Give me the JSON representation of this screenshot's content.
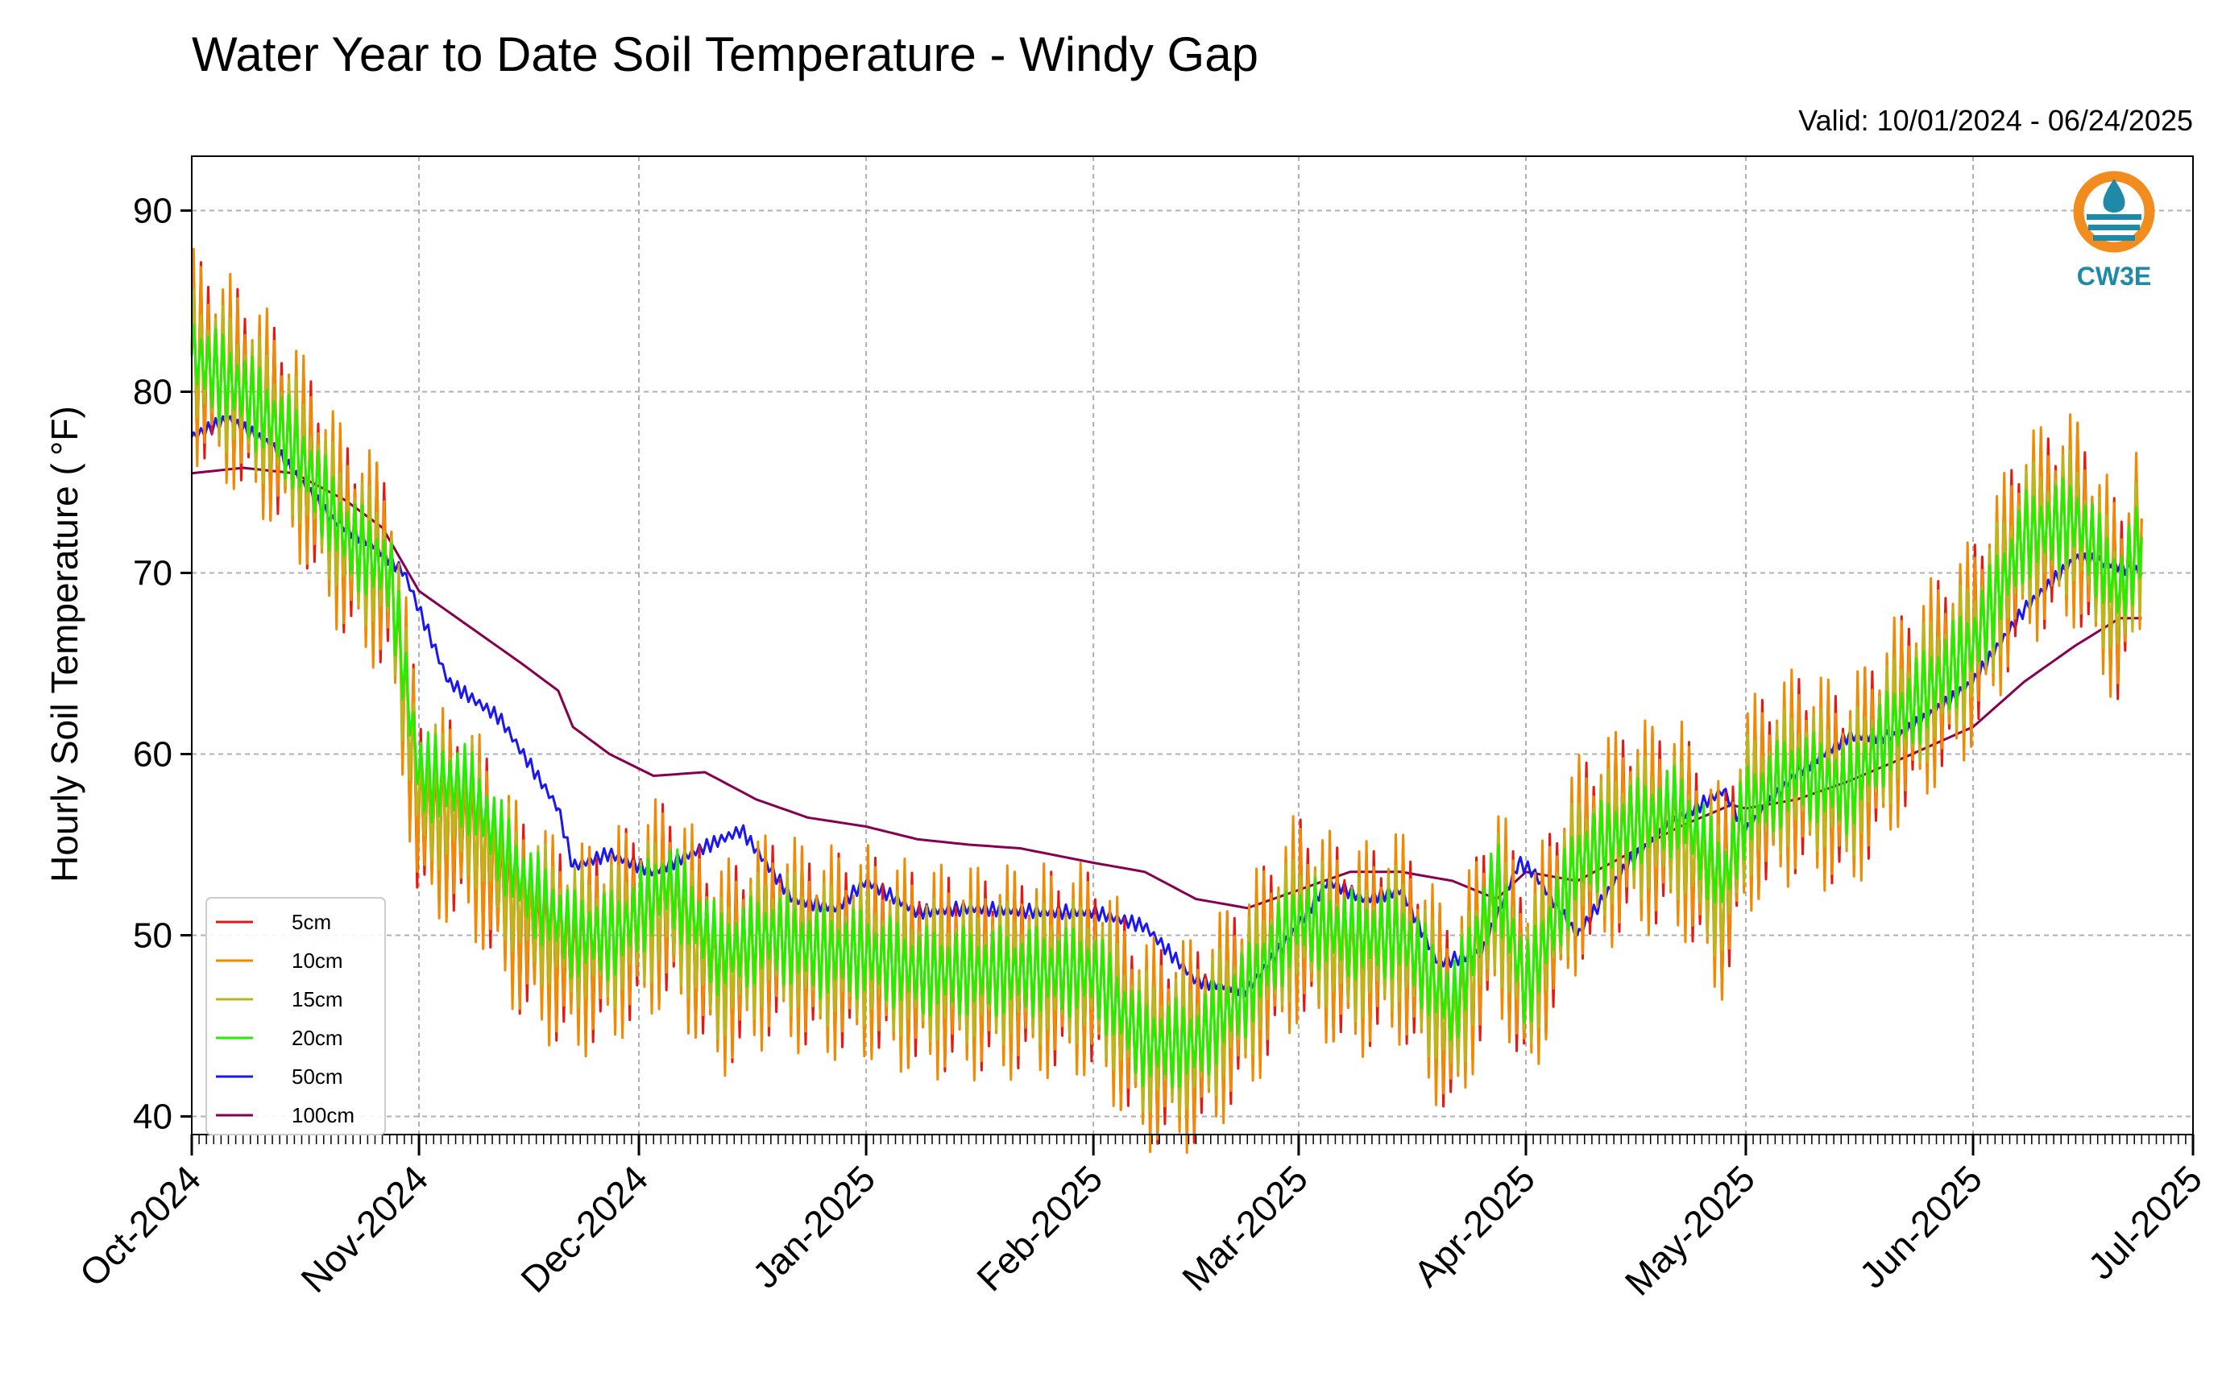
{
  "chart_data": {
    "type": "line",
    "title": "Water Year to Date Soil Temperature - Windy Gap",
    "valid_text": "Valid: 10/01/2024 - 06/24/2025",
    "ylabel": "Hourly Soil Temperature ( °F)",
    "xlabel": "",
    "ylim": [
      39,
      93
    ],
    "yticks": [
      40,
      50,
      60,
      70,
      80,
      90
    ],
    "xlim": [
      "2024-10-01",
      "2025-07-01"
    ],
    "xticks": [
      "Oct-2024",
      "Nov-2024",
      "Dec-2024",
      "Jan-2025",
      "Feb-2025",
      "Mar-2025",
      "Apr-2025",
      "May-2025",
      "Jun-2025",
      "Jul-2025"
    ],
    "grid": true,
    "legend_position": "lower-left",
    "series": [
      {
        "name": "5cm",
        "color": "#e8170f",
        "amplitude": 5.5,
        "x": [
          "2024-10-01",
          "2024-10-08",
          "2024-10-15",
          "2024-10-22",
          "2024-10-28",
          "2024-11-01",
          "2024-11-08",
          "2024-11-15",
          "2024-11-22",
          "2024-11-28",
          "2024-12-05",
          "2024-12-12",
          "2024-12-19",
          "2024-12-26",
          "2025-01-01",
          "2025-01-08",
          "2025-01-15",
          "2025-01-22",
          "2025-02-01",
          "2025-02-08",
          "2025-02-15",
          "2025-02-22",
          "2025-03-01",
          "2025-03-08",
          "2025-03-15",
          "2025-03-22",
          "2025-03-28",
          "2025-04-01",
          "2025-04-08",
          "2025-04-15",
          "2025-04-22",
          "2025-04-28",
          "2025-05-01",
          "2025-05-08",
          "2025-05-15",
          "2025-05-22",
          "2025-06-01",
          "2025-06-08",
          "2025-06-15",
          "2025-06-21",
          "2025-06-24"
        ],
        "values": [
          82,
          80,
          77,
          72,
          70,
          57,
          56,
          51,
          49,
          50,
          52,
          48,
          50,
          49,
          49,
          48,
          48,
          48,
          48,
          44,
          44,
          47,
          51,
          49,
          50,
          45,
          52,
          47,
          54,
          56,
          56,
          52,
          57,
          59,
          58,
          62,
          66,
          72,
          73,
          68,
          73
        ]
      },
      {
        "name": "10cm",
        "color": "#f08a00",
        "amplitude": 6.0,
        "x": [
          "2024-10-01",
          "2024-10-08",
          "2024-10-15",
          "2024-10-22",
          "2024-10-28",
          "2024-11-01",
          "2024-11-08",
          "2024-11-15",
          "2024-11-22",
          "2024-11-28",
          "2024-12-05",
          "2024-12-12",
          "2024-12-19",
          "2024-12-26",
          "2025-01-01",
          "2025-01-08",
          "2025-01-15",
          "2025-01-22",
          "2025-02-01",
          "2025-02-08",
          "2025-02-15",
          "2025-02-22",
          "2025-03-01",
          "2025-03-08",
          "2025-03-15",
          "2025-03-22",
          "2025-03-28",
          "2025-04-01",
          "2025-04-08",
          "2025-04-15",
          "2025-04-22",
          "2025-04-28",
          "2025-05-01",
          "2025-05-08",
          "2025-05-15",
          "2025-05-22",
          "2025-06-01",
          "2025-06-08",
          "2025-06-15",
          "2025-06-21",
          "2025-06-24"
        ],
        "values": [
          82,
          80,
          77,
          72,
          70,
          57,
          56,
          51,
          49,
          50,
          52,
          48,
          50,
          49,
          49,
          48,
          48,
          48,
          48,
          44,
          44,
          47,
          51,
          49,
          50,
          45,
          52,
          47,
          54,
          56,
          56,
          52,
          57,
          59,
          58,
          62,
          66,
          72,
          73,
          68,
          73
        ]
      },
      {
        "name": "15cm",
        "color": "#b8b81c",
        "amplitude": 4.0,
        "x": [
          "2024-10-01",
          "2024-10-08",
          "2024-10-15",
          "2024-10-22",
          "2024-10-28",
          "2024-11-01",
          "2024-11-08",
          "2024-11-15",
          "2024-11-22",
          "2024-11-28",
          "2024-12-05",
          "2024-12-12",
          "2024-12-19",
          "2024-12-26",
          "2025-01-01",
          "2025-01-08",
          "2025-01-15",
          "2025-01-22",
          "2025-02-01",
          "2025-02-08",
          "2025-02-15",
          "2025-02-22",
          "2025-03-01",
          "2025-03-08",
          "2025-03-15",
          "2025-03-22",
          "2025-03-28",
          "2025-04-01",
          "2025-04-08",
          "2025-04-15",
          "2025-04-22",
          "2025-04-28",
          "2025-05-01",
          "2025-05-08",
          "2025-05-15",
          "2025-05-22",
          "2025-06-01",
          "2025-06-08",
          "2025-06-15",
          "2025-06-21",
          "2025-06-24"
        ],
        "values": [
          82,
          80,
          77,
          72,
          70,
          58,
          57,
          52,
          50,
          50,
          52,
          48,
          50,
          49,
          49,
          48,
          48,
          48,
          48,
          44,
          44,
          47,
          51,
          49,
          50,
          45,
          52,
          47,
          54,
          56,
          56,
          52,
          57,
          59,
          58,
          62,
          66,
          72,
          73,
          68,
          72
        ]
      },
      {
        "name": "20cm",
        "color": "#22ee00",
        "amplitude": 2.5,
        "x": [
          "2024-10-01",
          "2024-10-08",
          "2024-10-15",
          "2024-10-22",
          "2024-10-28",
          "2024-11-01",
          "2024-11-08",
          "2024-11-15",
          "2024-11-22",
          "2024-11-28",
          "2024-12-05",
          "2024-12-12",
          "2024-12-19",
          "2024-12-26",
          "2025-01-01",
          "2025-01-08",
          "2025-01-15",
          "2025-01-22",
          "2025-02-01",
          "2025-02-08",
          "2025-02-15",
          "2025-02-22",
          "2025-03-01",
          "2025-03-08",
          "2025-03-15",
          "2025-03-22",
          "2025-03-28",
          "2025-04-01",
          "2025-04-08",
          "2025-04-15",
          "2025-04-22",
          "2025-04-28",
          "2025-05-01",
          "2025-05-08",
          "2025-05-15",
          "2025-05-22",
          "2025-06-01",
          "2025-06-08",
          "2025-06-15",
          "2025-06-21",
          "2025-06-24"
        ],
        "values": [
          82,
          80,
          77,
          72,
          70,
          59,
          58,
          53,
          50,
          50,
          53,
          49,
          50,
          49,
          49,
          48,
          48,
          48,
          48,
          44,
          44,
          47,
          51,
          50,
          50,
          46,
          53,
          47,
          54,
          56,
          57,
          53,
          57,
          59,
          58,
          62,
          66,
          72,
          73,
          69,
          72
        ]
      },
      {
        "name": "50cm",
        "color": "#1a17f0",
        "amplitude": 0.4,
        "x": [
          "2024-10-01",
          "2024-10-06",
          "2024-10-12",
          "2024-10-20",
          "2024-10-26",
          "2024-10-30",
          "2024-11-05",
          "2024-11-12",
          "2024-11-20",
          "2024-11-22",
          "2024-11-27",
          "2024-12-03",
          "2024-12-08",
          "2024-12-15",
          "2024-12-22",
          "2024-12-28",
          "2025-01-01",
          "2025-01-08",
          "2025-01-15",
          "2025-01-25",
          "2025-02-01",
          "2025-02-08",
          "2025-02-15",
          "2025-02-22",
          "2025-02-28",
          "2025-03-05",
          "2025-03-10",
          "2025-03-15",
          "2025-03-20",
          "2025-03-26",
          "2025-03-31",
          "2025-04-02",
          "2025-04-08",
          "2025-04-15",
          "2025-04-22",
          "2025-04-28",
          "2025-05-01",
          "2025-05-08",
          "2025-05-15",
          "2025-05-22",
          "2025-05-29",
          "2025-06-01",
          "2025-06-08",
          "2025-06-15",
          "2025-06-20",
          "2025-06-24"
        ],
        "values": [
          77.5,
          78.5,
          77,
          73,
          71.5,
          70,
          64,
          62,
          57,
          53.8,
          54.5,
          53.5,
          54.5,
          55.8,
          52,
          51.5,
          53,
          51.3,
          51.5,
          51.3,
          51.3,
          50.5,
          47.5,
          47,
          50,
          53,
          52,
          52.5,
          48.5,
          49,
          54,
          53.5,
          50,
          54,
          56.5,
          58,
          55.8,
          59,
          61,
          61,
          63,
          64,
          68,
          70.8,
          70.5,
          70
        ]
      },
      {
        "name": "100cm",
        "color": "#870050",
        "amplitude": 0,
        "x": [
          "2024-10-01",
          "2024-10-08",
          "2024-10-15",
          "2024-10-22",
          "2024-10-27",
          "2024-11-01",
          "2024-11-08",
          "2024-11-15",
          "2024-11-20",
          "2024-11-22",
          "2024-11-27",
          "2024-12-03",
          "2024-12-10",
          "2024-12-17",
          "2024-12-24",
          "2025-01-01",
          "2025-01-08",
          "2025-01-15",
          "2025-01-22",
          "2025-02-01",
          "2025-02-08",
          "2025-02-15",
          "2025-02-22",
          "2025-03-01",
          "2025-03-08",
          "2025-03-15",
          "2025-03-22",
          "2025-03-28",
          "2025-04-01",
          "2025-04-08",
          "2025-04-15",
          "2025-04-22",
          "2025-04-29",
          "2025-05-01",
          "2025-05-08",
          "2025-05-15",
          "2025-05-22",
          "2025-06-01",
          "2025-06-08",
          "2025-06-15",
          "2025-06-21",
          "2025-06-24"
        ],
        "values": [
          75.5,
          75.8,
          75.5,
          74,
          72.5,
          69,
          67,
          65,
          63.5,
          61.5,
          60,
          58.8,
          59,
          57.5,
          56.5,
          56,
          55.3,
          55,
          54.8,
          54,
          53.5,
          52,
          51.5,
          52.5,
          53.5,
          53.5,
          53,
          52,
          53.5,
          53,
          54.5,
          56,
          57.2,
          57,
          57.5,
          58.5,
          59.7,
          61.5,
          64,
          66,
          67.5,
          67.5
        ]
      }
    ]
  },
  "logo": {
    "text": "CW3E",
    "ring_color": "#f28c1e",
    "drop_color": "#1e8aa8"
  }
}
